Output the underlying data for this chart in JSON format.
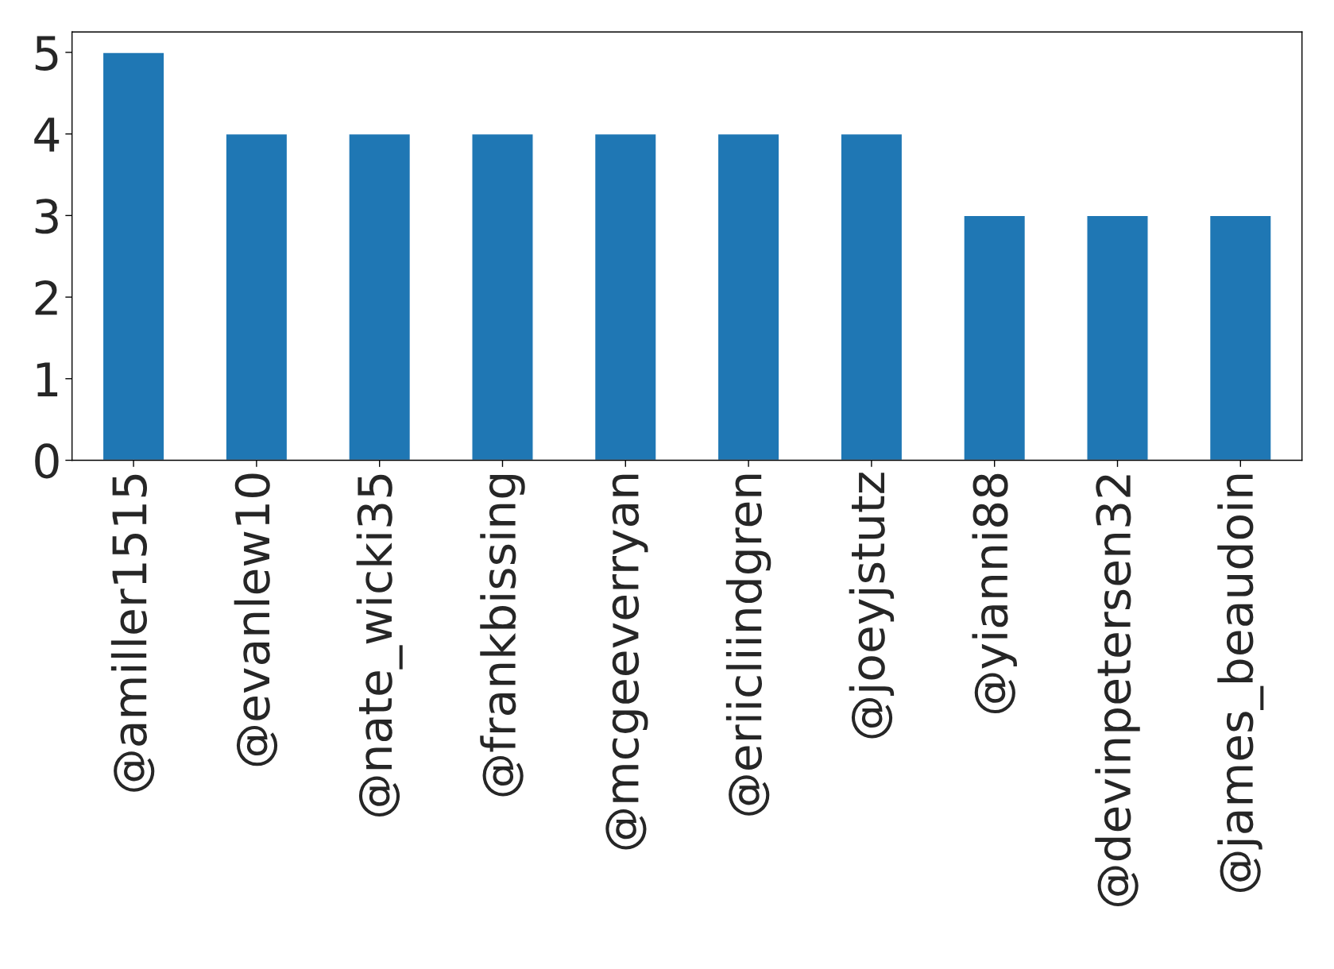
{
  "chart_data": {
    "type": "bar",
    "categories": [
      "@amiller1515",
      "@evanlew10",
      "@nate_wicki35",
      "@frankbissing",
      "@mcgeeverryan",
      "@eriicliindgren",
      "@joeyjstutz",
      "@yianni88",
      "@devinpetersen32",
      "@james_beaudoin"
    ],
    "values": [
      5,
      4,
      4,
      4,
      4,
      4,
      4,
      3,
      3,
      3
    ],
    "color": "#1f77b4",
    "ylim": [
      0,
      5.25
    ],
    "yticks": [
      0,
      1,
      2,
      3,
      4,
      5
    ],
    "grid": false,
    "legend": false
  }
}
